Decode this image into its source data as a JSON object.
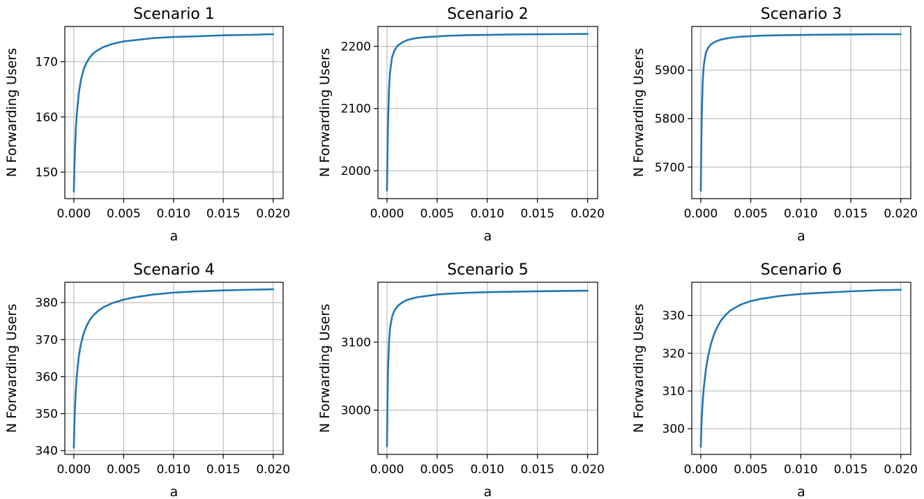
{
  "chart_data": [
    {
      "type": "line",
      "title": "Scenario 1",
      "xlabel": "a",
      "ylabel": "N Forwarding Users",
      "xlim": [
        -0.0009,
        0.021
      ],
      "ylim": [
        145.2,
        176.4
      ],
      "xticks": [
        0.0,
        0.005,
        0.01,
        0.015,
        0.02
      ],
      "xtick_labels": [
        "0.000",
        "0.005",
        "0.010",
        "0.015",
        "0.020"
      ],
      "yticks": [
        150,
        160,
        170
      ],
      "ytick_labels": [
        "150",
        "160",
        "170"
      ],
      "grid": true,
      "color": "#1f77b4",
      "x": [
        0.0,
        5e-05,
        0.0001,
        0.0002,
        0.0003,
        0.0005,
        0.0007,
        0.001,
        0.0013,
        0.0016,
        0.002,
        0.0025,
        0.003,
        0.004,
        0.005,
        0.006,
        0.008,
        0.01,
        0.012,
        0.015,
        0.018,
        0.02
      ],
      "y": [
        146.5,
        150.2,
        153.2,
        157.7,
        160.6,
        164.3,
        166.6,
        168.7,
        169.9,
        170.8,
        171.6,
        172.2,
        172.7,
        173.3,
        173.7,
        173.9,
        174.3,
        174.5,
        174.6,
        174.8,
        174.9,
        175.0
      ]
    },
    {
      "type": "line",
      "title": "Scenario 2",
      "xlabel": "a",
      "ylabel": "N Forwarding Users",
      "xlim": [
        -0.0009,
        0.021
      ],
      "ylim": [
        1955,
        2232
      ],
      "xticks": [
        0.0,
        0.005,
        0.01,
        0.015,
        0.02
      ],
      "xtick_labels": [
        "0.000",
        "0.005",
        "0.010",
        "0.015",
        "0.020"
      ],
      "yticks": [
        2000,
        2100,
        2200
      ],
      "ytick_labels": [
        "2000",
        "2100",
        "2200"
      ],
      "grid": true,
      "color": "#1f77b4",
      "x": [
        0.0,
        5e-05,
        0.0001,
        0.0002,
        0.0003,
        0.0005,
        0.0007,
        0.001,
        0.0013,
        0.0016,
        0.002,
        0.0025,
        0.003,
        0.004,
        0.005,
        0.006,
        0.008,
        0.01,
        0.012,
        0.015,
        0.018,
        0.02
      ],
      "y": [
        1968,
        2030,
        2075,
        2130,
        2158,
        2182,
        2192,
        2200,
        2204,
        2207,
        2210,
        2212,
        2213.5,
        2215,
        2216,
        2217,
        2218,
        2218.5,
        2219,
        2219.5,
        2219.8,
        2220
      ]
    },
    {
      "type": "line",
      "title": "Scenario 3",
      "xlabel": "a",
      "ylabel": "N Forwarding Users",
      "xlim": [
        -0.0009,
        0.021
      ],
      "ylim": [
        5635,
        5990
      ],
      "xticks": [
        0.0,
        0.005,
        0.01,
        0.015,
        0.02
      ],
      "xtick_labels": [
        "0.000",
        "0.005",
        "0.010",
        "0.015",
        "0.020"
      ],
      "yticks": [
        5700,
        5800,
        5900
      ],
      "ytick_labels": [
        "5700",
        "5800",
        "5900"
      ],
      "grid": true,
      "color": "#1f77b4",
      "x": [
        0.0,
        5e-05,
        0.0001,
        0.0002,
        0.0003,
        0.0005,
        0.0007,
        0.001,
        0.0013,
        0.0016,
        0.002,
        0.0025,
        0.003,
        0.004,
        0.005,
        0.006,
        0.008,
        0.01,
        0.012,
        0.015,
        0.018,
        0.02
      ],
      "y": [
        5651,
        5740,
        5810,
        5880,
        5910,
        5935,
        5945,
        5953,
        5957,
        5960,
        5963,
        5965,
        5967,
        5969,
        5970,
        5971,
        5972,
        5972.5,
        5973,
        5973.5,
        5974,
        5974
      ]
    },
    {
      "type": "line",
      "title": "Scenario 4",
      "xlabel": "a",
      "ylabel": "N Forwarding Users",
      "xlim": [
        -0.0009,
        0.021
      ],
      "ylim": [
        339,
        385.5
      ],
      "xticks": [
        0.0,
        0.005,
        0.01,
        0.015,
        0.02
      ],
      "xtick_labels": [
        "0.000",
        "0.005",
        "0.010",
        "0.015",
        "0.020"
      ],
      "yticks": [
        340,
        350,
        360,
        370,
        380
      ],
      "ytick_labels": [
        "340",
        "350",
        "360",
        "370",
        "380"
      ],
      "grid": true,
      "color": "#1f77b4",
      "x": [
        0.0,
        5e-05,
        0.0001,
        0.0002,
        0.0003,
        0.0005,
        0.0007,
        0.001,
        0.0013,
        0.0016,
        0.002,
        0.0025,
        0.003,
        0.004,
        0.005,
        0.006,
        0.008,
        0.01,
        0.012,
        0.015,
        0.018,
        0.02
      ],
      "y": [
        340.8,
        346.5,
        350.5,
        356.3,
        360.3,
        365.5,
        368.7,
        371.8,
        373.8,
        375.3,
        376.7,
        377.9,
        378.8,
        380.0,
        380.8,
        381.4,
        382.2,
        382.7,
        383.0,
        383.3,
        383.5,
        383.6
      ]
    },
    {
      "type": "line",
      "title": "Scenario 5",
      "xlabel": "a",
      "ylabel": "N Forwarding Users",
      "xlim": [
        -0.0009,
        0.021
      ],
      "ylim": [
        2935,
        3188
      ],
      "xticks": [
        0.0,
        0.005,
        0.01,
        0.015,
        0.02
      ],
      "xtick_labels": [
        "0.000",
        "0.005",
        "0.010",
        "0.015",
        "0.020"
      ],
      "yticks": [
        3000,
        3100
      ],
      "ytick_labels": [
        "3000",
        "3100"
      ],
      "grid": true,
      "color": "#1f77b4",
      "x": [
        0.0,
        5e-05,
        0.0001,
        0.0002,
        0.0003,
        0.0005,
        0.0007,
        0.001,
        0.0013,
        0.0016,
        0.002,
        0.0025,
        0.003,
        0.004,
        0.005,
        0.006,
        0.008,
        0.01,
        0.012,
        0.015,
        0.018,
        0.02
      ],
      "y": [
        2947,
        3015,
        3058,
        3100,
        3120,
        3137,
        3145,
        3152,
        3156,
        3159,
        3162,
        3164,
        3166,
        3168,
        3170,
        3171,
        3172.5,
        3173.5,
        3174,
        3174.8,
        3175.3,
        3175.6
      ]
    },
    {
      "type": "line",
      "title": "Scenario 6",
      "xlabel": "a",
      "ylabel": "N Forwarding Users",
      "xlim": [
        -0.0009,
        0.021
      ],
      "ylim": [
        293.2,
        338.8
      ],
      "xticks": [
        0.0,
        0.005,
        0.01,
        0.015,
        0.02
      ],
      "xtick_labels": [
        "0.000",
        "0.005",
        "0.010",
        "0.015",
        "0.020"
      ],
      "yticks": [
        300,
        310,
        320,
        330
      ],
      "ytick_labels": [
        "300",
        "310",
        "320",
        "330"
      ],
      "grid": true,
      "color": "#1f77b4",
      "x": [
        0.0,
        5e-05,
        0.0001,
        0.0002,
        0.0003,
        0.0005,
        0.0007,
        0.001,
        0.0013,
        0.0016,
        0.002,
        0.0025,
        0.003,
        0.004,
        0.005,
        0.006,
        0.008,
        0.01,
        0.012,
        0.015,
        0.018,
        0.02
      ],
      "y": [
        295.2,
        299.5,
        302.8,
        307.5,
        310.8,
        315.5,
        318.8,
        322.3,
        324.8,
        326.7,
        328.6,
        330.2,
        331.4,
        332.9,
        333.8,
        334.4,
        335.2,
        335.7,
        336.0,
        336.4,
        336.7,
        336.8
      ]
    }
  ]
}
